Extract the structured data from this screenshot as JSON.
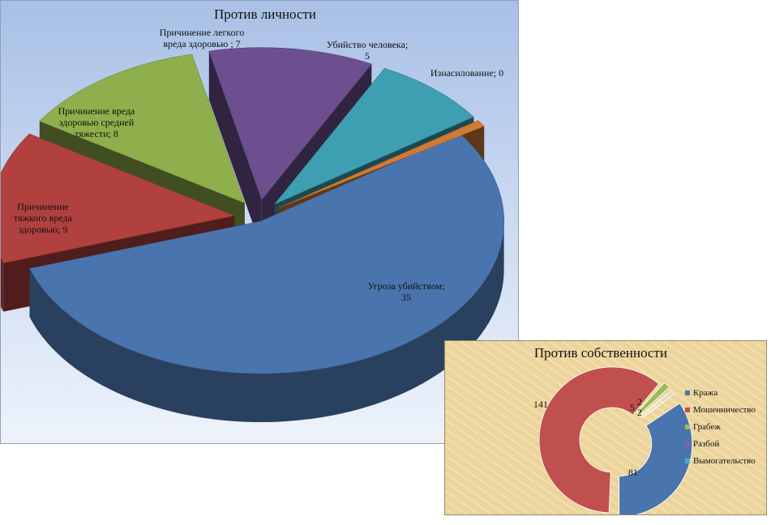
{
  "chart_data": [
    {
      "type": "pie",
      "title": "Против личности",
      "slices": [
        {
          "label_lines": [
            "Угроза убийством;",
            "35"
          ],
          "value": 35,
          "color": "#4a74ad"
        },
        {
          "label_lines": [
            "Причинение",
            "тяжкого вреда",
            "здоровью; 9"
          ],
          "value": 9,
          "color": "#b0413e"
        },
        {
          "label_lines": [
            "Причинение вреда",
            "здоровью средней",
            "тяжести; 8"
          ],
          "value": 8,
          "color": "#8fae4c"
        },
        {
          "label_lines": [
            "Причинение легкого",
            "вреда здоровью ; 7"
          ],
          "value": 7,
          "color": "#6d4f8f"
        },
        {
          "label_lines": [
            "Убийство человека;",
            "5"
          ],
          "value": 5,
          "color": "#3e9fb2"
        },
        {
          "label_lines": [
            "Изнасилование; 0"
          ],
          "value": 0,
          "color": "#d07a35"
        }
      ]
    },
    {
      "type": "pie",
      "title": "Против собственности",
      "series": [
        {
          "name": "Кража",
          "value": 81,
          "color": "#4a74ad"
        },
        {
          "name": "Мошенничество",
          "value": 141,
          "color": "#c0504d"
        },
        {
          "name": "Грабеж",
          "value": 5,
          "color": "#9bbb59"
        },
        {
          "name": "Разбой",
          "value": 2,
          "color": "#8064a2"
        },
        {
          "name": "Вымогательство",
          "value": 2,
          "color": "#4bacc6"
        }
      ],
      "data_labels": [
        "81",
        "141",
        "5",
        "2",
        "2"
      ],
      "legend": "right"
    }
  ]
}
